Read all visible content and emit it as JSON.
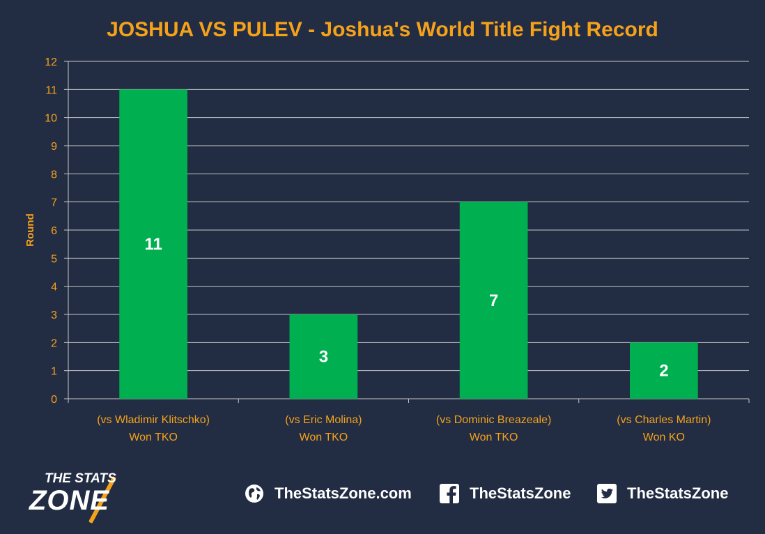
{
  "chart_data": {
    "type": "bar",
    "title": "JOSHUA VS PULEV - Joshua's World Title Fight Record",
    "ylabel": "Round",
    "xlabel": "",
    "ylim": [
      0,
      12
    ],
    "yticks": [
      0,
      1,
      2,
      3,
      4,
      5,
      6,
      7,
      8,
      9,
      10,
      11,
      12
    ],
    "grid": true,
    "categories": [
      [
        "(vs Wladimir Klitschko)",
        "Won TKO"
      ],
      [
        "(vs Eric Molina)",
        "Won TKO"
      ],
      [
        "(vs Dominic Breazeale)",
        "Won TKO"
      ],
      [
        "(vs Charles Martin)",
        "Won KO"
      ]
    ],
    "values": [
      11,
      3,
      7,
      2
    ],
    "data_labels": [
      "11",
      "3",
      "7",
      "2"
    ],
    "colors": {
      "background": "#222c43",
      "bar": "#00b050",
      "title": "#f5a21a",
      "axis_text": "#f5a21a",
      "grid": "#c8c8c8",
      "data_label": "#ffffff"
    }
  },
  "footer": {
    "logo_top": "THE STATS",
    "logo_bottom": "ZONE",
    "website": "TheStatsZone.com",
    "facebook": "TheStatsZone",
    "twitter": "TheStatsZone",
    "icons": [
      "globe-icon",
      "facebook-icon",
      "twitter-icon"
    ]
  }
}
